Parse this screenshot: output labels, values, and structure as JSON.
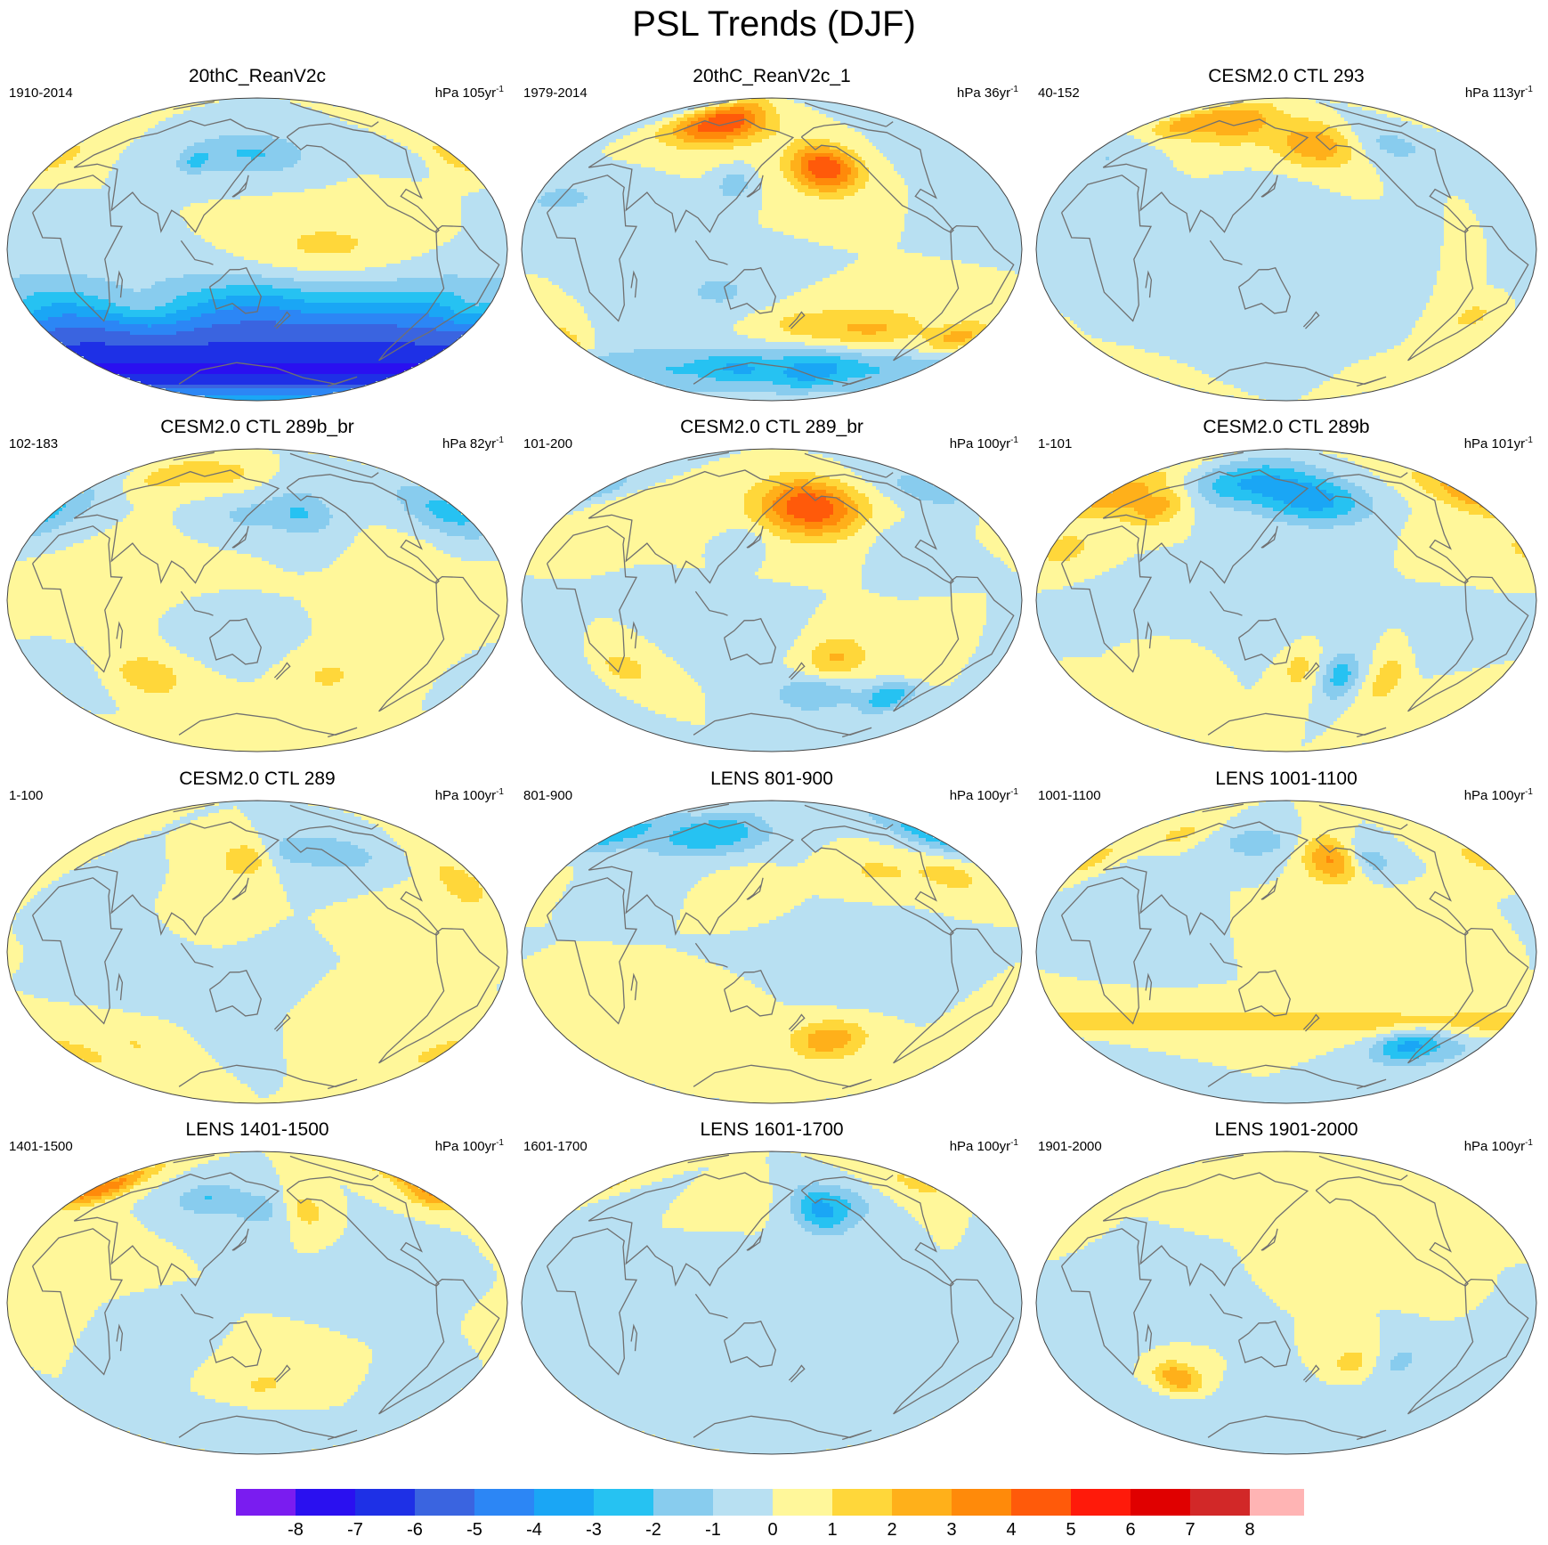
{
  "title": "PSL Trends (DJF)",
  "palette": [
    "#7a1cf0",
    "#2a10f0",
    "#1e30e6",
    "#3a64e0",
    "#2c86f5",
    "#1aa6f5",
    "#26c2f2",
    "#88ccee",
    "#b8e0f2",
    "#fff79a",
    "#ffd73a",
    "#ffb01a",
    "#ff8a0a",
    "#ff5a0a",
    "#ff1a0a",
    "#e00000",
    "#d22828",
    "#ffb4b4"
  ],
  "colorbar": {
    "ticks": [
      "-8",
      "-7",
      "-6",
      "-5",
      "-4",
      "-3",
      "-2",
      "-1",
      "0",
      "1",
      "2",
      "3",
      "4",
      "5",
      "6",
      "7",
      "8"
    ]
  },
  "panels": [
    {
      "title": "20thC_ReanV2c",
      "period": "1910-2014",
      "units": "hPa 105yr",
      "units_exp": "-1",
      "base": 8,
      "bands": [
        {
          "lat": -60,
          "w": 24,
          "min": 0,
          "amp": -6
        },
        {
          "lat": -75,
          "w": 8,
          "min": 0,
          "amp": -2
        }
      ],
      "blobs": [
        [
          -160,
          0,
          42,
          14,
          1.4
        ],
        [
          60,
          -35,
          22,
          11,
          1.6
        ],
        [
          -35,
          55,
          20,
          11,
          1.4
        ],
        [
          -40,
          -35,
          14,
          10,
          1.2
        ],
        [
          130,
          58,
          35,
          10,
          -1.5
        ],
        [
          160,
          55,
          26,
          8,
          -0.8
        ],
        [
          95,
          52,
          8,
          5,
          -1.5
        ],
        [
          -75,
          55,
          20,
          8,
          -0.8
        ],
        [
          -100,
          28,
          18,
          8,
          0.6
        ],
        [
          -25,
          25,
          15,
          8,
          -0.7
        ],
        [
          150,
          -30,
          24,
          10,
          -0.8
        ]
      ]
    },
    {
      "title": "20thC_ReanV2c_1",
      "period": "1979-2014",
      "units": "hPa 36yr",
      "units_exp": "-1",
      "base": 8,
      "bands": [
        {
          "lat": -72,
          "w": 10,
          "min": -6,
          "amp": -2
        }
      ],
      "blobs": [
        [
          85,
          75,
          30,
          9,
          5
        ],
        [
          -165,
          48,
          18,
          10,
          5
        ],
        [
          -45,
          -53,
          16,
          7,
          2.6
        ],
        [
          -120,
          -48,
          26,
          9,
          2
        ],
        [
          -180,
          -45,
          28,
          8,
          1.4
        ],
        [
          120,
          38,
          8,
          6,
          -2
        ],
        [
          110,
          -25,
          24,
          10,
          -1.2
        ],
        [
          -10,
          30,
          28,
          9,
          -1.2
        ],
        [
          -160,
          -72,
          22,
          8,
          -1.7
        ],
        [
          110,
          -70,
          20,
          6,
          -1.2
        ],
        [
          -30,
          80,
          25,
          8,
          -0.9
        ],
        [
          -75,
          55,
          15,
          8,
          -0.5
        ]
      ]
    },
    {
      "title": "CESM2.0 CTL 293",
      "period": "40-152",
      "units": "hPa 113yr",
      "units_exp": "-1",
      "base": 8,
      "bands": [],
      "blobs": [
        [
          -180,
          62,
          24,
          10,
          3
        ],
        [
          90,
          75,
          25,
          9,
          2.6
        ],
        [
          20,
          75,
          20,
          7,
          2.4
        ],
        [
          -110,
          62,
          25,
          9,
          -1.4
        ],
        [
          -10,
          55,
          20,
          10,
          -1
        ],
        [
          -60,
          -40,
          12,
          8,
          1.3
        ],
        [
          -45,
          -72,
          18,
          7,
          1
        ],
        [
          -80,
          -10,
          8,
          18,
          0.7
        ],
        [
          150,
          40,
          20,
          15,
          -0.3
        ],
        [
          -30,
          0,
          40,
          25,
          -0.2
        ]
      ]
    },
    {
      "title": "CESM2.0 CTL 289b_br",
      "period": "102-183",
      "units": "hPa 82yr",
      "units_exp": "-1",
      "base": 9,
      "bands": [],
      "blobs": [
        [
          -170,
          52,
          18,
          10,
          -2
        ],
        [
          -40,
          52,
          24,
          12,
          -2.4
        ],
        [
          140,
          50,
          20,
          7,
          -1.2
        ],
        [
          40,
          75,
          22,
          7,
          1.7
        ],
        [
          110,
          75,
          20,
          6,
          1.4
        ],
        [
          60,
          -45,
          18,
          9,
          1.8
        ],
        [
          -150,
          -45,
          15,
          7,
          1.3
        ],
        [
          -10,
          -40,
          18,
          10,
          -0.8
        ],
        [
          120,
          -20,
          22,
          10,
          -0.6
        ],
        [
          -100,
          30,
          20,
          8,
          0.4
        ],
        [
          0,
          0,
          60,
          30,
          0.2
        ]
      ]
    },
    {
      "title": "CESM2.0 CTL 289_br",
      "period": "101-200",
      "units": "hPa 100yr",
      "units_exp": "-1",
      "base": 8,
      "bands": [],
      "blobs": [
        [
          -175,
          55,
          28,
          12,
          5
        ],
        [
          -100,
          -57,
          14,
          7,
          -3
        ],
        [
          -170,
          -55,
          22,
          8,
          -2.2
        ],
        [
          -160,
          -35,
          16,
          10,
          2.2
        ],
        [
          30,
          -40,
          16,
          8,
          1.5
        ],
        [
          -20,
          -40,
          20,
          10,
          -1
        ],
        [
          -90,
          -40,
          20,
          10,
          1
        ],
        [
          -40,
          65,
          25,
          8,
          -1.8
        ],
        [
          120,
          -20,
          25,
          10,
          -1
        ],
        [
          0,
          55,
          20,
          8,
          0.8
        ],
        [
          130,
          35,
          10,
          6,
          -1
        ],
        [
          60,
          60,
          25,
          8,
          0.6
        ],
        [
          -120,
          40,
          20,
          10,
          -0.5
        ]
      ]
    },
    {
      "title": "CESM2.0 CTL 289b",
      "period": "1-101",
      "units": "hPa 101yr",
      "units_exp": "-1",
      "base": 8,
      "bands": [],
      "blobs": [
        [
          110,
          70,
          40,
          10,
          -3
        ],
        [
          180,
          58,
          28,
          10,
          -3
        ],
        [
          -20,
          63,
          25,
          10,
          2.8
        ],
        [
          35,
          55,
          15,
          8,
          2.4
        ],
        [
          -20,
          30,
          18,
          8,
          1.4
        ],
        [
          -165,
          -45,
          10,
          10,
          -2.5
        ],
        [
          -125,
          -45,
          10,
          12,
          1.6
        ],
        [
          160,
          -40,
          10,
          12,
          1.4
        ],
        [
          -60,
          -60,
          25,
          8,
          1
        ],
        [
          -100,
          -30,
          22,
          10,
          -0.5
        ],
        [
          80,
          0,
          40,
          12,
          -0.4
        ],
        [
          140,
          -20,
          20,
          10,
          -0.8
        ],
        [
          -80,
          40,
          18,
          8,
          0.5
        ],
        [
          60,
          -40,
          15,
          8,
          0.8
        ]
      ]
    },
    {
      "title": "CESM2.0 CTL 289",
      "period": "1-100",
      "units": "hPa 100yr",
      "units_exp": "-1",
      "base": 9,
      "bands": [],
      "blobs": [
        [
          140,
          55,
          14,
          8,
          2
        ],
        [
          -45,
          40,
          12,
          10,
          1.8
        ],
        [
          -125,
          58,
          18,
          8,
          -1.5
        ],
        [
          -175,
          60,
          20,
          8,
          -1.5
        ],
        [
          -30,
          -60,
          20,
          8,
          1.4
        ],
        [
          80,
          -10,
          25,
          14,
          -0.5
        ],
        [
          130,
          -45,
          15,
          8,
          -0.7
        ],
        [
          150,
          -20,
          15,
          10,
          -0.6
        ],
        [
          -140,
          -40,
          20,
          8,
          0.6
        ],
        [
          40,
          -55,
          20,
          8,
          1
        ],
        [
          -80,
          20,
          20,
          10,
          0.5
        ],
        [
          0,
          30,
          25,
          8,
          -0.5
        ],
        [
          110,
          20,
          15,
          10,
          0.5
        ]
      ]
    },
    {
      "title": "LENS 801-900",
      "period": "801-900",
      "units": "hPa 100yr",
      "units_exp": "-1",
      "base": 8,
      "bands": [],
      "blobs": [
        [
          80,
          70,
          35,
          9,
          -3
        ],
        [
          -30,
          70,
          20,
          9,
          -2.4
        ],
        [
          -160,
          -52,
          20,
          8,
          2.8
        ],
        [
          -60,
          45,
          18,
          8,
          1.4
        ],
        [
          -120,
          48,
          20,
          7,
          1.2
        ],
        [
          -140,
          -10,
          30,
          15,
          -0.6
        ],
        [
          130,
          40,
          15,
          8,
          0.6
        ],
        [
          -10,
          -40,
          22,
          10,
          0.5
        ],
        [
          30,
          45,
          20,
          8,
          -0.5
        ],
        [
          100,
          -40,
          25,
          9,
          0.5
        ],
        [
          -100,
          -70,
          30,
          8,
          0.5
        ]
      ]
    },
    {
      "title": "LENS 1001-1100",
      "period": "1001-1100",
      "units": "hPa 100yr",
      "units_exp": "-1",
      "base": 8,
      "bands": [
        {
          "lat": -42,
          "w": 6,
          "min": 0,
          "amp": 1.5
        }
      ],
      "blobs": [
        [
          -170,
          55,
          15,
          10,
          3.2
        ],
        [
          -100,
          -55,
          18,
          7,
          -3
        ],
        [
          -135,
          55,
          12,
          7,
          -1.8
        ],
        [
          120,
          65,
          25,
          8,
          -1.5
        ],
        [
          -30,
          55,
          15,
          8,
          1.5
        ],
        [
          30,
          70,
          15,
          6,
          1.3
        ],
        [
          -60,
          -60,
          25,
          8,
          -1.2
        ],
        [
          10,
          40,
          20,
          10,
          -0.5
        ],
        [
          -120,
          20,
          20,
          10,
          0.5
        ],
        [
          160,
          15,
          20,
          10,
          0.4
        ],
        [
          60,
          10,
          20,
          10,
          -0.4
        ]
      ]
    },
    {
      "title": "LENS 1401-1500",
      "period": "1401-1500",
      "units": "hPa 100yr",
      "units_exp": "-1",
      "base": 9,
      "bands": [],
      "blobs": [
        [
          -15,
          70,
          14,
          8,
          3.2
        ],
        [
          -40,
          62,
          14,
          6,
          1.8
        ],
        [
          100,
          62,
          18,
          7,
          -2
        ],
        [
          150,
          55,
          15,
          8,
          -1.5
        ],
        [
          -165,
          55,
          10,
          8,
          1.6
        ],
        [
          -100,
          15,
          25,
          15,
          -0.5
        ],
        [
          150,
          -50,
          20,
          8,
          1
        ],
        [
          60,
          -30,
          20,
          10,
          -0.4
        ],
        [
          -80,
          -40,
          15,
          10,
          -0.6
        ],
        [
          -175,
          -40,
          20,
          8,
          0.6
        ],
        [
          120,
          -70,
          30,
          8,
          -0.5
        ],
        [
          10,
          30,
          20,
          10,
          0.3
        ],
        [
          -20,
          -10,
          20,
          10,
          0.3
        ]
      ]
    },
    {
      "title": "LENS 1601-1700",
      "period": "1601-1700",
      "units": "hPa 100yr",
      "units_exp": "-1",
      "base": 9,
      "bands": [],
      "blobs": [
        [
          -165,
          55,
          15,
          10,
          -3.4
        ],
        [
          -40,
          70,
          18,
          8,
          1.3
        ],
        [
          -130,
          60,
          12,
          8,
          -1.2
        ],
        [
          110,
          60,
          20,
          8,
          0.5
        ],
        [
          100,
          20,
          20,
          10,
          -0.5
        ],
        [
          160,
          -30,
          20,
          10,
          -0.5
        ],
        [
          0,
          60,
          20,
          8,
          -0.5
        ],
        [
          -80,
          -30,
          20,
          12,
          -0.5
        ],
        [
          -20,
          -50,
          25,
          8,
          -0.4
        ],
        [
          60,
          -60,
          30,
          8,
          -0.3
        ]
      ]
    },
    {
      "title": "LENS 1901-2000",
      "period": "1901-2000",
      "units": "hPa 100yr",
      "units_exp": "-1",
      "base": 8,
      "bands": [
        {
          "lat": -68,
          "w": 10,
          "min": 0,
          "amp": -0.9
        }
      ],
      "blobs": [
        [
          60,
          -45,
          12,
          7,
          3
        ],
        [
          -160,
          -35,
          10,
          7,
          1.5
        ],
        [
          -120,
          -35,
          10,
          8,
          -1.3
        ],
        [
          110,
          70,
          30,
          8,
          1
        ],
        [
          -160,
          40,
          20,
          10,
          1
        ],
        [
          0,
          -10,
          30,
          20,
          -0.4
        ],
        [
          -40,
          40,
          15,
          8,
          0.5
        ],
        [
          -60,
          -40,
          15,
          8,
          -0.6
        ],
        [
          -90,
          20,
          15,
          10,
          0.5
        ]
      ]
    }
  ]
}
